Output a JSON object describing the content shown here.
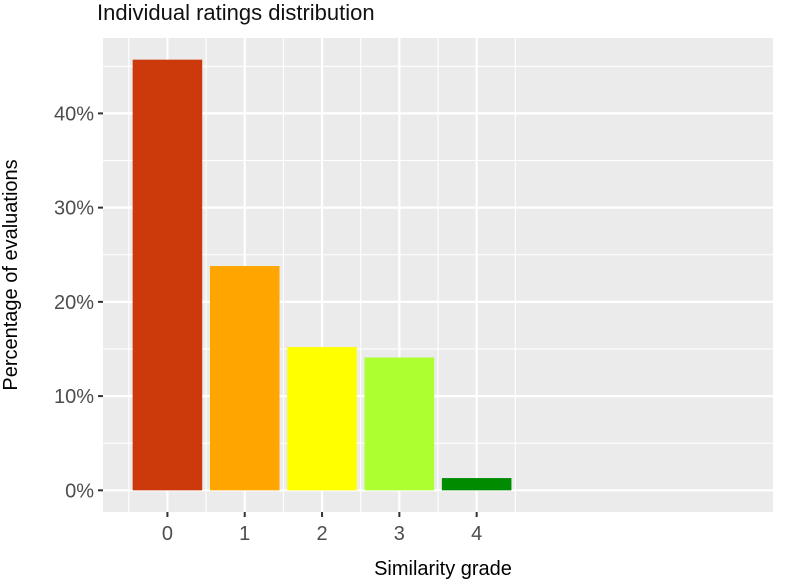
{
  "chart_data": {
    "type": "bar",
    "title": "Individual ratings distribution",
    "xlabel": "Similarity grade",
    "ylabel": "Percentage of evaluations",
    "categories": [
      "0",
      "1",
      "2",
      "3",
      "4"
    ],
    "values": [
      45.7,
      23.8,
      15.2,
      14.1,
      1.3
    ],
    "colors": [
      "#cc3a0c",
      "#ffa500",
      "#ffff00",
      "#adff2f",
      "#008b00"
    ],
    "ylim": [
      -2.3,
      48.0
    ],
    "yticks": [
      0,
      10,
      20,
      30,
      40
    ],
    "ytick_labels": [
      "0%",
      "10%",
      "20%",
      "30%",
      "40%"
    ],
    "grid": true,
    "panel_background": "#ebebeb",
    "gridline_color": "#ffffff"
  }
}
